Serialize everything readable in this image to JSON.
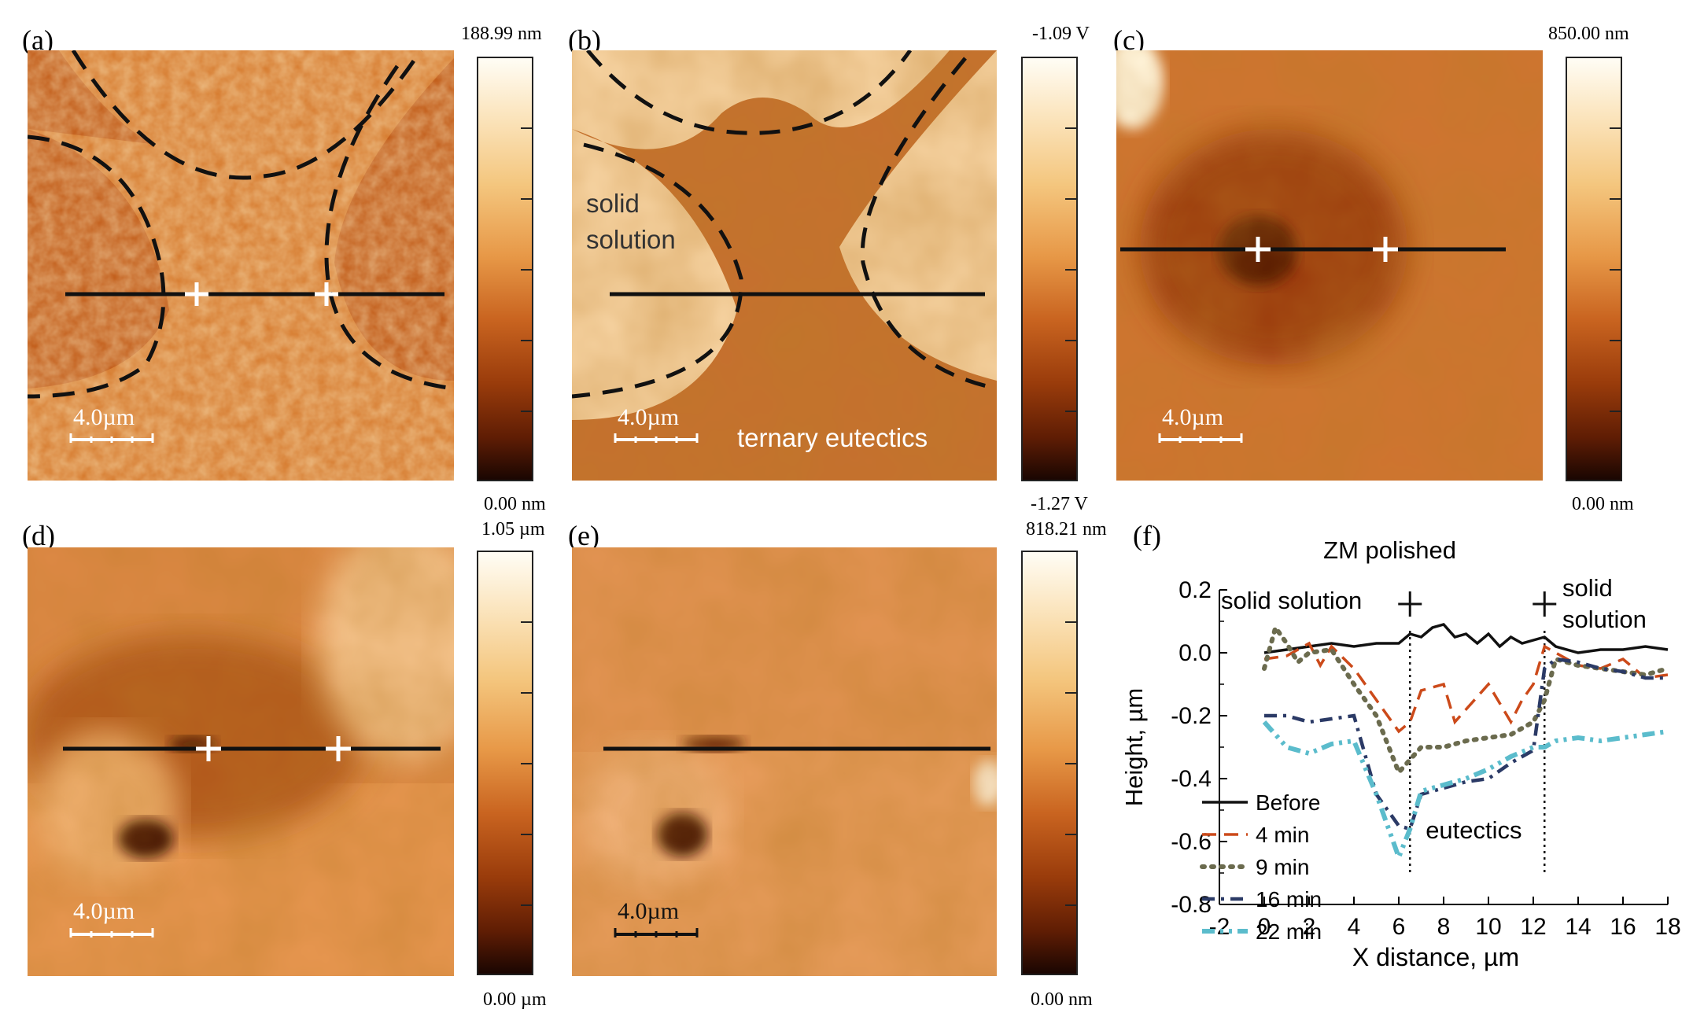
{
  "panels": {
    "a": {
      "label": "(a)",
      "scale": "4.0µm",
      "cbar_max": "188.99 nm",
      "cbar_min": "0.00 nm"
    },
    "b": {
      "label": "(b)",
      "scale": "4.0µm",
      "cbar_max": "-1.09 V",
      "cbar_min": "-1.27 V",
      "annot_solid": "solid\nsolution",
      "annot_solid_l1": "solid",
      "annot_solid_l2": "solution",
      "annot_eutectics": "ternary eutectics"
    },
    "c": {
      "label": "(c)",
      "scale": "4.0µm",
      "cbar_max": "850.00 nm",
      "cbar_min": "0.00 nm"
    },
    "d": {
      "label": "(d)",
      "scale": "4.0µm",
      "cbar_max": "1.05 µm",
      "cbar_min": "0.00 µm"
    },
    "e": {
      "label": "(e)",
      "scale": "4.0µm",
      "cbar_max": "818.21 nm",
      "cbar_min": "0.00 nm"
    },
    "f": {
      "label": "(f)"
    }
  },
  "colors": {
    "afm_light": "#f2b070",
    "afm_mid": "#d9782c",
    "afm_dark": "#7a2a05"
  },
  "chart_data": {
    "type": "line",
    "title": "ZM polished",
    "xlabel": "X distance, µm",
    "ylabel": "Height, µm",
    "xlim": [
      -2,
      18
    ],
    "ylim": [
      -0.8,
      0.2
    ],
    "xticks": [
      -2,
      0,
      2,
      4,
      6,
      8,
      10,
      12,
      14,
      16,
      18
    ],
    "yticks": [
      0.2,
      0.0,
      -0.2,
      -0.4,
      -0.6,
      -0.8
    ],
    "ytick_labels": [
      "0.2",
      "0.0",
      "-0.2",
      "-0.4",
      "-0.6",
      "-0.8"
    ],
    "annotations": {
      "left": "solid solution",
      "right_l1": "solid",
      "right_l2": "solution",
      "middle": "eutectics",
      "markers_x": [
        6.5,
        12.5
      ]
    },
    "legend_position": "bottom-left",
    "series": [
      {
        "name": "Before",
        "color": "#111111",
        "dash": "solid",
        "x": [
          0,
          1,
          2,
          3,
          4,
          5,
          6,
          6.5,
          7,
          7.5,
          8,
          8.5,
          9,
          9.5,
          10,
          10.5,
          11,
          11.5,
          12,
          12.5,
          13,
          14,
          15,
          16,
          17,
          18
        ],
        "y": [
          0.0,
          0.01,
          0.02,
          0.03,
          0.02,
          0.03,
          0.03,
          0.06,
          0.05,
          0.08,
          0.09,
          0.05,
          0.06,
          0.03,
          0.06,
          0.02,
          0.05,
          0.03,
          0.04,
          0.05,
          0.02,
          0.0,
          0.01,
          0.01,
          0.02,
          0.01
        ]
      },
      {
        "name": "4 min",
        "color": "#cc4a1a",
        "dash": "dash",
        "x": [
          0,
          1,
          2,
          2.5,
          3,
          4,
          5,
          6,
          6.5,
          7,
          8,
          8.5,
          9,
          10,
          11,
          11.5,
          12,
          12.5,
          13,
          14,
          15,
          16,
          17,
          18
        ],
        "y": [
          -0.02,
          -0.01,
          0.03,
          -0.04,
          0.02,
          -0.05,
          -0.15,
          -0.25,
          -0.22,
          -0.12,
          -0.1,
          -0.22,
          -0.18,
          -0.1,
          -0.22,
          -0.15,
          -0.1,
          0.02,
          0.0,
          -0.04,
          -0.05,
          -0.02,
          -0.08,
          -0.07
        ]
      },
      {
        "name": "9 min",
        "color": "#6b6b4e",
        "dash": "dot",
        "x": [
          0,
          0.5,
          1,
          1.5,
          2,
          3,
          4,
          5,
          6,
          6.5,
          7,
          8,
          9,
          10,
          11,
          12,
          12.5,
          13,
          14,
          15,
          16,
          17,
          18
        ],
        "y": [
          -0.05,
          0.08,
          0.03,
          -0.03,
          0.0,
          0.01,
          -0.1,
          -0.2,
          -0.38,
          -0.34,
          -0.3,
          -0.3,
          -0.28,
          -0.27,
          -0.26,
          -0.22,
          -0.15,
          -0.02,
          -0.04,
          -0.05,
          -0.06,
          -0.07,
          -0.05
        ]
      },
      {
        "name": "16 min",
        "color": "#2b3a66",
        "dash": "dashdot",
        "x": [
          0,
          1,
          2,
          3,
          4,
          5,
          6,
          6.5,
          7,
          8,
          9,
          10,
          11,
          12,
          12.5,
          13,
          14,
          15,
          16,
          17,
          18
        ],
        "y": [
          -0.2,
          -0.2,
          -0.22,
          -0.21,
          -0.2,
          -0.45,
          -0.55,
          -0.56,
          -0.45,
          -0.43,
          -0.41,
          -0.4,
          -0.35,
          -0.31,
          -0.05,
          -0.02,
          -0.03,
          -0.05,
          -0.06,
          -0.08,
          -0.08
        ]
      },
      {
        "name": "22 min",
        "color": "#5bbccc",
        "dash": "dashdotdot",
        "x": [
          0,
          1,
          2,
          3,
          4,
          5,
          6,
          6.5,
          7,
          8,
          9,
          10,
          11,
          12,
          12.5,
          13,
          14,
          15,
          16,
          17,
          18
        ],
        "y": [
          -0.22,
          -0.3,
          -0.32,
          -0.29,
          -0.28,
          -0.45,
          -0.65,
          -0.56,
          -0.44,
          -0.42,
          -0.4,
          -0.37,
          -0.33,
          -0.3,
          -0.3,
          -0.28,
          -0.27,
          -0.28,
          -0.27,
          -0.26,
          -0.25
        ]
      }
    ]
  }
}
